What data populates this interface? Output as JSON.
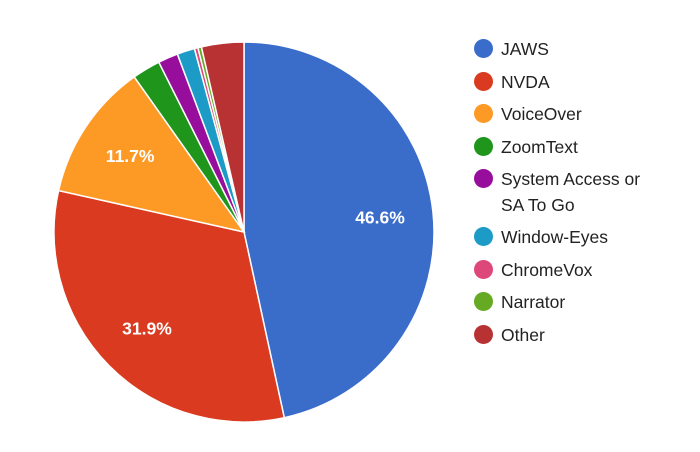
{
  "chart_data": {
    "type": "pie",
    "categories": [
      "JAWS",
      "NVDA",
      "VoiceOver",
      "ZoomText",
      "System Access or SA To Go",
      "Window-Eyes",
      "ChromeVox",
      "Narrator",
      "Other"
    ],
    "values": [
      46.6,
      31.9,
      11.7,
      2.4,
      1.7,
      1.5,
      0.3,
      0.3,
      3.6
    ],
    "colors": [
      "#3a6cca",
      "#da3b20",
      "#fd9a26",
      "#1f951c",
      "#980e9c",
      "#1b9bc6",
      "#de4779",
      "#66a923",
      "#b83233"
    ],
    "data_labels": [
      "46.6%",
      "31.9%",
      "11.7%",
      "",
      "",
      "",
      "",
      "",
      ""
    ],
    "legend_position": "right",
    "start": "top, clockwise"
  }
}
